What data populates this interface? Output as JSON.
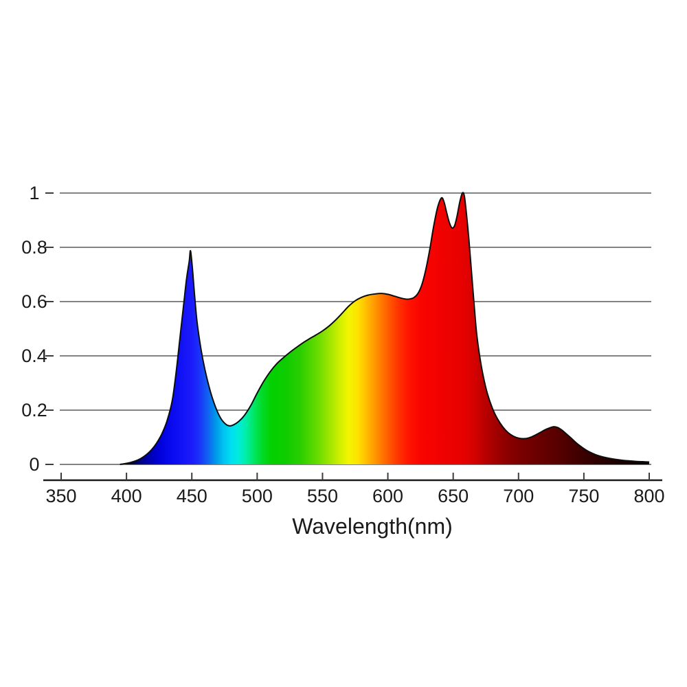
{
  "colors": {
    "background": "#ffffff",
    "grid": "#828282",
    "axis": "#1a1a1a",
    "tick": "#3c3c3c",
    "text": "#1a1a1a",
    "curve_outline": "#0d0d0d"
  },
  "chart_data": {
    "type": "area",
    "title": "",
    "xlabel": "Wavelength(nm)",
    "ylabel": "",
    "xlim": [
      350,
      800
    ],
    "ylim": [
      0,
      1
    ],
    "grid": true,
    "legend": "none",
    "x_ticks": [
      350,
      400,
      450,
      500,
      550,
      600,
      650,
      700,
      750,
      800
    ],
    "x_tick_labels": [
      "350",
      "400",
      "450",
      "500",
      "550",
      "600",
      "650",
      "700",
      "750",
      "800"
    ],
    "y_ticks": [
      0,
      0.2,
      0.4,
      0.6,
      0.8,
      1
    ],
    "y_tick_labels": [
      "0",
      "0.2",
      "0.4",
      "0.6",
      "0.8",
      "1"
    ],
    "series": [
      {
        "name": "led-spectral-power-distribution",
        "x": [
          395,
          399,
          403,
          407,
          411,
          415,
          419,
          423,
          427,
          431,
          435,
          438,
          441,
          444,
          446,
          448,
          449,
          450.5,
          452,
          454,
          457,
          460,
          464,
          468,
          472,
          476,
          479,
          482,
          486,
          490,
          495,
          500,
          505,
          510,
          515,
          520,
          525,
          530,
          535,
          540,
          545,
          550,
          555,
          560,
          565,
          570,
          575,
          580,
          585,
          590,
          595,
          600,
          605,
          610,
          614,
          617,
          620,
          623,
          626,
          629,
          632,
          635,
          638,
          641,
          643,
          645,
          647,
          649,
          651,
          653,
          655,
          657,
          658.5,
          660,
          662,
          664,
          666,
          668,
          670.5,
          673,
          676,
          680,
          684,
          688,
          692,
          696,
          700,
          704,
          708,
          712,
          716,
          720,
          724,
          727,
          730,
          733,
          736,
          740,
          744,
          748,
          752,
          756,
          760,
          765,
          770,
          775,
          780,
          785,
          790,
          795,
          800
        ],
        "y": [
          0,
          0.003,
          0.007,
          0.013,
          0.022,
          0.035,
          0.053,
          0.078,
          0.112,
          0.16,
          0.235,
          0.34,
          0.47,
          0.6,
          0.685,
          0.748,
          0.787,
          0.72,
          0.63,
          0.525,
          0.425,
          0.35,
          0.272,
          0.213,
          0.171,
          0.148,
          0.142,
          0.146,
          0.159,
          0.179,
          0.216,
          0.263,
          0.306,
          0.342,
          0.371,
          0.393,
          0.413,
          0.431,
          0.448,
          0.463,
          0.477,
          0.492,
          0.51,
          0.532,
          0.557,
          0.583,
          0.603,
          0.616,
          0.624,
          0.628,
          0.63,
          0.627,
          0.62,
          0.613,
          0.609,
          0.61,
          0.615,
          0.63,
          0.662,
          0.717,
          0.79,
          0.876,
          0.946,
          0.982,
          0.967,
          0.928,
          0.892,
          0.872,
          0.879,
          0.916,
          0.966,
          1.0,
          0.99,
          0.93,
          0.83,
          0.71,
          0.59,
          0.48,
          0.392,
          0.325,
          0.264,
          0.207,
          0.167,
          0.138,
          0.117,
          0.104,
          0.097,
          0.095,
          0.098,
          0.106,
          0.116,
          0.127,
          0.135,
          0.139,
          0.136,
          0.127,
          0.115,
          0.098,
          0.08,
          0.065,
          0.052,
          0.042,
          0.034,
          0.027,
          0.022,
          0.018,
          0.015,
          0.013,
          0.011,
          0.01,
          0.009
        ]
      }
    ],
    "fill_gradient_by_wavelength": [
      {
        "wl": 400,
        "color": "#03001c"
      },
      {
        "wl": 408,
        "color": "#00006b"
      },
      {
        "wl": 416,
        "color": "#0000a8"
      },
      {
        "wl": 424,
        "color": "#0000d4"
      },
      {
        "wl": 432,
        "color": "#0707ec"
      },
      {
        "wl": 442,
        "color": "#1212f6"
      },
      {
        "wl": 450,
        "color": "#1b1bfa"
      },
      {
        "wl": 456,
        "color": "#1a34f8"
      },
      {
        "wl": 462,
        "color": "#1160f2"
      },
      {
        "wl": 468,
        "color": "#0095e9"
      },
      {
        "wl": 474,
        "color": "#00c1ee"
      },
      {
        "wl": 480,
        "color": "#00def2"
      },
      {
        "wl": 486,
        "color": "#00ecd8"
      },
      {
        "wl": 492,
        "color": "#00eda2"
      },
      {
        "wl": 498,
        "color": "#00e55e"
      },
      {
        "wl": 504,
        "color": "#00da26"
      },
      {
        "wl": 511,
        "color": "#04d000"
      },
      {
        "wl": 521,
        "color": "#0ccc00"
      },
      {
        "wl": 533,
        "color": "#2ace00"
      },
      {
        "wl": 544,
        "color": "#5cd900"
      },
      {
        "wl": 554,
        "color": "#95e400"
      },
      {
        "wl": 562,
        "color": "#c9ee00"
      },
      {
        "wl": 570,
        "color": "#f3f500"
      },
      {
        "wl": 577,
        "color": "#fee200"
      },
      {
        "wl": 584,
        "color": "#ffba00"
      },
      {
        "wl": 592,
        "color": "#ff8c00"
      },
      {
        "wl": 600,
        "color": "#ff5e00"
      },
      {
        "wl": 608,
        "color": "#ff3400"
      },
      {
        "wl": 616,
        "color": "#ff1400"
      },
      {
        "wl": 625,
        "color": "#fa0400"
      },
      {
        "wl": 641,
        "color": "#f00200"
      },
      {
        "wl": 657,
        "color": "#e60100"
      },
      {
        "wl": 665,
        "color": "#d70200"
      },
      {
        "wl": 673,
        "color": "#bd0100"
      },
      {
        "wl": 683,
        "color": "#9f0100"
      },
      {
        "wl": 693,
        "color": "#880000"
      },
      {
        "wl": 703,
        "color": "#780000"
      },
      {
        "wl": 713,
        "color": "#6c0000"
      },
      {
        "wl": 723,
        "color": "#600000"
      },
      {
        "wl": 733,
        "color": "#530000"
      },
      {
        "wl": 743,
        "color": "#440000"
      },
      {
        "wl": 753,
        "color": "#360000"
      },
      {
        "wl": 763,
        "color": "#2a0000"
      },
      {
        "wl": 776,
        "color": "#1c0000"
      },
      {
        "wl": 788,
        "color": "#120000"
      },
      {
        "wl": 800,
        "color": "#0b0000"
      }
    ]
  }
}
